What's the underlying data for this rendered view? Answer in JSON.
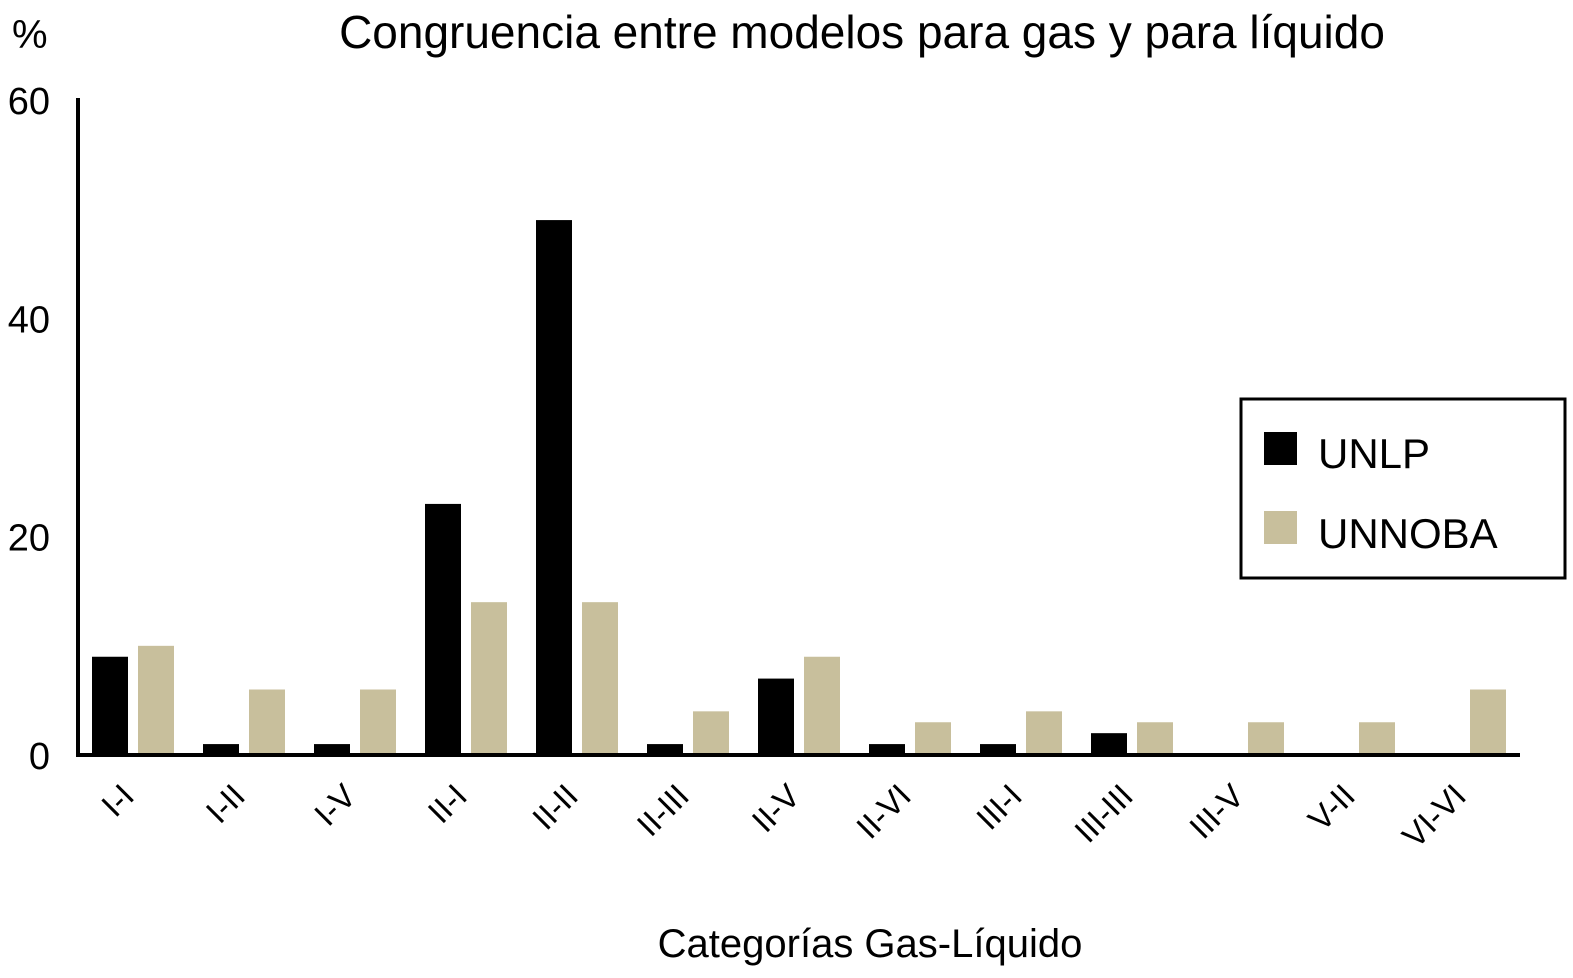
{
  "chart_data": {
    "type": "bar",
    "title": "Congruencia entre modelos para gas y para líquido",
    "ylabel": "%",
    "xlabel": "Categorías Gas-Líquido",
    "ylim": [
      0,
      60
    ],
    "yticks": [
      "0",
      "20",
      "40",
      "60"
    ],
    "grid": false,
    "legend_position": "right",
    "categories": [
      "I-I",
      "I-II",
      "I-V",
      "II-I",
      "II-II",
      "II-III",
      "II-V",
      "II-VI",
      "III-I",
      "III-III",
      "III-V",
      "V-II",
      "VI-VI"
    ],
    "series": [
      {
        "name": "UNLP",
        "color": "#000000",
        "values": [
          9,
          1,
          1,
          23,
          49,
          1,
          7,
          1,
          1,
          2,
          0,
          0,
          0
        ]
      },
      {
        "name": "UNNOBA",
        "color": "#c8bf9c",
        "values": [
          10,
          6,
          6,
          14,
          14,
          4,
          9,
          3,
          4,
          3,
          3,
          3,
          6
        ]
      }
    ]
  }
}
